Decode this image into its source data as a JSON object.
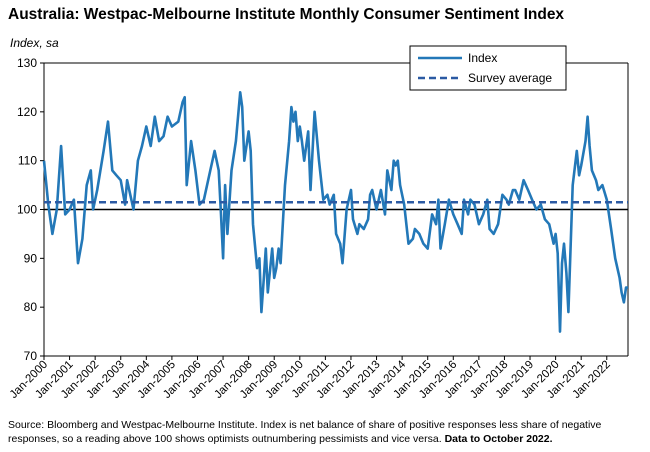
{
  "chart_data": {
    "type": "line",
    "title": "Australia: Westpac-Melbourne Institute Monthly Consumer Sentiment Index",
    "ylabel": "Index, sa",
    "xlabel": "",
    "ylim": [
      70,
      130
    ],
    "yticks": [
      70,
      80,
      90,
      100,
      110,
      120,
      130
    ],
    "xlim": [
      2000.0,
      2022.83
    ],
    "xtick_labels": [
      "Jan-2000",
      "Jan-2001",
      "Jan-2002",
      "Jan-2003",
      "Jan-2004",
      "Jan-2005",
      "Jan-2006",
      "Jan-2007",
      "Jan-2008",
      "Jan-2009",
      "Jan-2010",
      "Jan-2011",
      "Jan-2012",
      "Jan-2013",
      "Jan-2014",
      "Jan-2015",
      "Jan-2016",
      "Jan-2017",
      "Jan-2018",
      "Jan-2019",
      "Jan-2020",
      "Jan-2021",
      "Jan-2022"
    ],
    "reference_line": 100,
    "legend_position": "top-right",
    "series": [
      {
        "name": "Index",
        "color": "#2378b8",
        "style": "solid",
        "points": [
          [
            2000.0,
            110
          ],
          [
            2000.17,
            101
          ],
          [
            2000.33,
            95
          ],
          [
            2000.5,
            100
          ],
          [
            2000.67,
            113
          ],
          [
            2000.83,
            99
          ],
          [
            2001.0,
            100
          ],
          [
            2001.17,
            102
          ],
          [
            2001.33,
            89
          ],
          [
            2001.5,
            94
          ],
          [
            2001.67,
            105
          ],
          [
            2001.83,
            108
          ],
          [
            2001.92,
            100
          ],
          [
            2002.08,
            104
          ],
          [
            2002.33,
            112
          ],
          [
            2002.5,
            118
          ],
          [
            2002.67,
            108
          ],
          [
            2002.83,
            107
          ],
          [
            2003.0,
            106
          ],
          [
            2003.17,
            101
          ],
          [
            2003.25,
            106
          ],
          [
            2003.5,
            100
          ],
          [
            2003.67,
            110
          ],
          [
            2003.83,
            113
          ],
          [
            2004.0,
            117
          ],
          [
            2004.17,
            113
          ],
          [
            2004.33,
            119
          ],
          [
            2004.5,
            114
          ],
          [
            2004.67,
            115
          ],
          [
            2004.83,
            119
          ],
          [
            2005.0,
            117
          ],
          [
            2005.25,
            118
          ],
          [
            2005.42,
            122
          ],
          [
            2005.5,
            123
          ],
          [
            2005.58,
            105
          ],
          [
            2005.75,
            114
          ],
          [
            2005.92,
            108
          ],
          [
            2006.08,
            101
          ],
          [
            2006.25,
            102
          ],
          [
            2006.5,
            108
          ],
          [
            2006.67,
            112
          ],
          [
            2006.83,
            108
          ],
          [
            2006.92,
            99
          ],
          [
            2007.0,
            90
          ],
          [
            2007.08,
            105
          ],
          [
            2007.17,
            95
          ],
          [
            2007.33,
            108
          ],
          [
            2007.5,
            114
          ],
          [
            2007.67,
            124
          ],
          [
            2007.75,
            121
          ],
          [
            2007.83,
            110
          ],
          [
            2008.0,
            116
          ],
          [
            2008.08,
            112
          ],
          [
            2008.17,
            97
          ],
          [
            2008.33,
            88
          ],
          [
            2008.42,
            90
          ],
          [
            2008.5,
            79
          ],
          [
            2008.58,
            85
          ],
          [
            2008.67,
            92
          ],
          [
            2008.75,
            83
          ],
          [
            2008.92,
            92
          ],
          [
            2009.0,
            86
          ],
          [
            2009.08,
            88
          ],
          [
            2009.17,
            92
          ],
          [
            2009.25,
            89
          ],
          [
            2009.42,
            105
          ],
          [
            2009.58,
            114
          ],
          [
            2009.67,
            121
          ],
          [
            2009.75,
            118
          ],
          [
            2009.83,
            120
          ],
          [
            2009.92,
            114
          ],
          [
            2010.0,
            117
          ],
          [
            2010.08,
            114
          ],
          [
            2010.17,
            110
          ],
          [
            2010.33,
            116
          ],
          [
            2010.42,
            104
          ],
          [
            2010.58,
            120
          ],
          [
            2010.75,
            110
          ],
          [
            2010.92,
            102
          ],
          [
            2011.08,
            103
          ],
          [
            2011.17,
            101
          ],
          [
            2011.33,
            103
          ],
          [
            2011.42,
            95
          ],
          [
            2011.58,
            93
          ],
          [
            2011.67,
            89
          ],
          [
            2011.83,
            100
          ],
          [
            2012.0,
            104
          ],
          [
            2012.08,
            98
          ],
          [
            2012.25,
            95
          ],
          [
            2012.33,
            97
          ],
          [
            2012.5,
            96
          ],
          [
            2012.67,
            98
          ],
          [
            2012.75,
            103
          ],
          [
            2012.83,
            104
          ],
          [
            2013.0,
            100
          ],
          [
            2013.17,
            104
          ],
          [
            2013.33,
            99
          ],
          [
            2013.42,
            108
          ],
          [
            2013.58,
            104
          ],
          [
            2013.67,
            110
          ],
          [
            2013.75,
            109
          ],
          [
            2013.83,
            110
          ],
          [
            2013.92,
            105
          ],
          [
            2014.08,
            101
          ],
          [
            2014.25,
            93
          ],
          [
            2014.42,
            94
          ],
          [
            2014.5,
            96
          ],
          [
            2014.67,
            95
          ],
          [
            2014.83,
            93
          ],
          [
            2015.0,
            92
          ],
          [
            2015.17,
            99
          ],
          [
            2015.33,
            97
          ],
          [
            2015.42,
            102
          ],
          [
            2015.5,
            92
          ],
          [
            2015.67,
            97
          ],
          [
            2015.83,
            102
          ],
          [
            2016.0,
            99
          ],
          [
            2016.17,
            97
          ],
          [
            2016.33,
            95
          ],
          [
            2016.42,
            102
          ],
          [
            2016.58,
            99
          ],
          [
            2016.67,
            102
          ],
          [
            2016.83,
            101
          ],
          [
            2017.0,
            97
          ],
          [
            2017.17,
            99
          ],
          [
            2017.33,
            102
          ],
          [
            2017.42,
            96
          ],
          [
            2017.58,
            95
          ],
          [
            2017.75,
            97
          ],
          [
            2017.92,
            103
          ],
          [
            2018.08,
            102
          ],
          [
            2018.17,
            101
          ],
          [
            2018.33,
            104
          ],
          [
            2018.42,
            104
          ],
          [
            2018.58,
            102
          ],
          [
            2018.75,
            106
          ],
          [
            2018.92,
            104
          ],
          [
            2019.08,
            102
          ],
          [
            2019.25,
            100
          ],
          [
            2019.42,
            101
          ],
          [
            2019.58,
            98
          ],
          [
            2019.75,
            97
          ],
          [
            2019.92,
            93
          ],
          [
            2020.0,
            95
          ],
          [
            2020.08,
            91
          ],
          [
            2020.17,
            75
          ],
          [
            2020.25,
            89
          ],
          [
            2020.33,
            93
          ],
          [
            2020.42,
            87
          ],
          [
            2020.5,
            79
          ],
          [
            2020.67,
            105
          ],
          [
            2020.83,
            112
          ],
          [
            2020.92,
            107
          ],
          [
            2021.0,
            109
          ],
          [
            2021.17,
            114
          ],
          [
            2021.25,
            119
          ],
          [
            2021.33,
            113
          ],
          [
            2021.42,
            108
          ],
          [
            2021.58,
            106
          ],
          [
            2021.67,
            104
          ],
          [
            2021.83,
            105
          ],
          [
            2022.0,
            102
          ],
          [
            2022.17,
            96
          ],
          [
            2022.33,
            90
          ],
          [
            2022.5,
            86
          ],
          [
            2022.58,
            83
          ],
          [
            2022.67,
            81
          ],
          [
            2022.75,
            84
          ],
          [
            2022.83,
            84
          ]
        ]
      },
      {
        "name": "Survey average",
        "color": "#2b5aa3",
        "style": "dashed",
        "points": [
          [
            2000.0,
            101.5
          ],
          [
            2022.83,
            101.5
          ]
        ]
      }
    ]
  },
  "source_text": "Source: Bloomberg and Westpac-Melbourne Institute.  Index is net balance of share of positive responses less share of negative responses, so a reading above 100 shows optimists outnumbering pessimists and vice versa.",
  "source_bold": "Data to October 2022."
}
